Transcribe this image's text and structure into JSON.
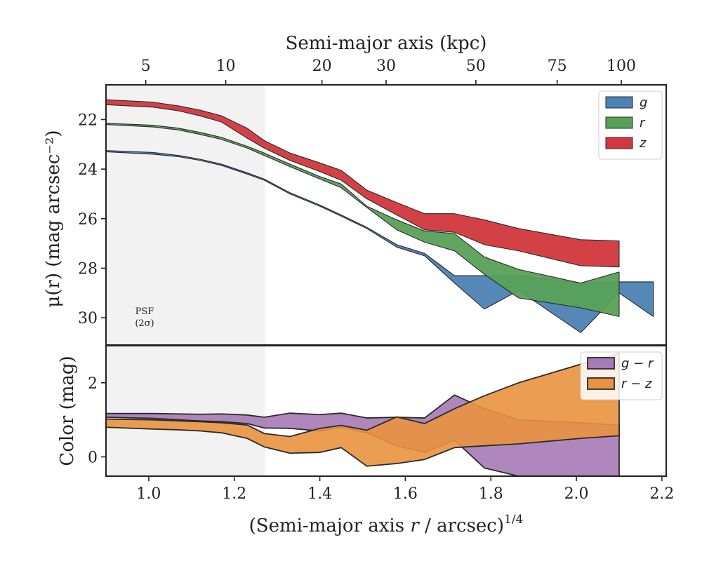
{
  "chart_data": [
    {
      "type": "area",
      "panel": "surface-brightness",
      "xlabel_top": "Semi-major axis (kpc)",
      "ylabel": "μ(r) (mag arcsec⁻²)",
      "xlim": [
        0.9,
        2.21
      ],
      "ylim": [
        31.1,
        20.6
      ],
      "y_inverted": true,
      "yticks": [
        22,
        24,
        26,
        28,
        30
      ],
      "top_ticks_kpc": [
        {
          "label": "5",
          "x": 0.993
        },
        {
          "label": "10",
          "x": 1.18
        },
        {
          "label": "20",
          "x": 1.405
        },
        {
          "label": "30",
          "x": 1.555
        },
        {
          "label": "50",
          "x": 1.765
        },
        {
          "label": "75",
          "x": 1.955
        },
        {
          "label": "100",
          "x": 2.105
        }
      ],
      "psf_shade_x": [
        0.9,
        1.272
      ],
      "psf_label": [
        "PSF",
        "(2σ)"
      ],
      "legend_position": "upper right",
      "series": [
        {
          "name": "g",
          "color": "#4c81b3",
          "upper": [
            [
              0.9,
              23.25
            ],
            [
              1.01,
              23.33
            ],
            [
              1.07,
              23.45
            ],
            [
              1.12,
              23.6
            ],
            [
              1.17,
              23.8
            ],
            [
              1.23,
              24.15
            ],
            [
              1.27,
              24.4
            ],
            [
              1.33,
              24.95
            ],
            [
              1.4,
              25.45
            ],
            [
              1.45,
              25.85
            ],
            [
              1.51,
              26.35
            ],
            [
              1.58,
              27.05
            ],
            [
              1.645,
              27.4
            ],
            [
              1.715,
              28.3
            ],
            [
              1.785,
              28.3
            ],
            [
              1.865,
              28.3
            ],
            [
              2.01,
              28.6
            ],
            [
              2.1,
              28.55
            ],
            [
              2.18,
              28.55
            ]
          ],
          "lower": [
            [
              0.9,
              23.3
            ],
            [
              1.01,
              23.4
            ],
            [
              1.07,
              23.5
            ],
            [
              1.12,
              23.65
            ],
            [
              1.17,
              23.85
            ],
            [
              1.23,
              24.2
            ],
            [
              1.27,
              24.45
            ],
            [
              1.33,
              25.0
            ],
            [
              1.4,
              25.5
            ],
            [
              1.45,
              25.9
            ],
            [
              1.51,
              26.4
            ],
            [
              1.58,
              27.15
            ],
            [
              1.645,
              27.5
            ],
            [
              1.715,
              28.6
            ],
            [
              1.785,
              29.65
            ],
            [
              1.865,
              28.9
            ],
            [
              2.01,
              30.6
            ],
            [
              2.1,
              29.0
            ],
            [
              2.18,
              29.95
            ]
          ]
        },
        {
          "name": "r",
          "color": "#57a157",
          "upper": [
            [
              0.9,
              22.15
            ],
            [
              1.01,
              22.23
            ],
            [
              1.07,
              22.35
            ],
            [
              1.12,
              22.52
            ],
            [
              1.17,
              22.72
            ],
            [
              1.23,
              23.08
            ],
            [
              1.27,
              23.35
            ],
            [
              1.33,
              23.8
            ],
            [
              1.4,
              24.3
            ],
            [
              1.45,
              24.6
            ],
            [
              1.51,
              25.5
            ],
            [
              1.58,
              26.05
            ],
            [
              1.645,
              26.5
            ],
            [
              1.715,
              26.6
            ],
            [
              1.785,
              27.55
            ],
            [
              1.865,
              28.05
            ],
            [
              2.01,
              28.6
            ],
            [
              2.1,
              28.15
            ]
          ],
          "lower": [
            [
              0.9,
              22.2
            ],
            [
              1.01,
              22.3
            ],
            [
              1.07,
              22.42
            ],
            [
              1.12,
              22.6
            ],
            [
              1.17,
              22.8
            ],
            [
              1.23,
              23.15
            ],
            [
              1.27,
              23.45
            ],
            [
              1.33,
              23.9
            ],
            [
              1.4,
              24.4
            ],
            [
              1.45,
              24.75
            ],
            [
              1.51,
              25.55
            ],
            [
              1.58,
              26.45
            ],
            [
              1.645,
              26.95
            ],
            [
              1.715,
              27.3
            ],
            [
              1.785,
              28.25
            ],
            [
              1.865,
              29.2
            ],
            [
              2.01,
              29.6
            ],
            [
              2.1,
              29.95
            ]
          ]
        },
        {
          "name": "z",
          "color": "#d1373d",
          "upper": [
            [
              0.9,
              21.2
            ],
            [
              1.01,
              21.3
            ],
            [
              1.07,
              21.45
            ],
            [
              1.12,
              21.62
            ],
            [
              1.17,
              21.85
            ],
            [
              1.23,
              22.35
            ],
            [
              1.27,
              22.85
            ],
            [
              1.33,
              23.35
            ],
            [
              1.4,
              23.75
            ],
            [
              1.45,
              24.05
            ],
            [
              1.51,
              24.85
            ],
            [
              1.58,
              25.35
            ],
            [
              1.645,
              25.8
            ],
            [
              1.715,
              25.8
            ],
            [
              1.785,
              26.05
            ],
            [
              1.865,
              26.4
            ],
            [
              2.01,
              26.85
            ],
            [
              2.1,
              26.9
            ]
          ],
          "lower": [
            [
              0.9,
              21.4
            ],
            [
              1.01,
              21.5
            ],
            [
              1.07,
              21.65
            ],
            [
              1.12,
              21.85
            ],
            [
              1.17,
              22.1
            ],
            [
              1.23,
              22.75
            ],
            [
              1.27,
              23.15
            ],
            [
              1.33,
              23.65
            ],
            [
              1.4,
              24.1
            ],
            [
              1.45,
              24.45
            ],
            [
              1.51,
              25.2
            ],
            [
              1.58,
              25.85
            ],
            [
              1.645,
              26.45
            ],
            [
              1.715,
              26.55
            ],
            [
              1.785,
              27.05
            ],
            [
              1.865,
              27.3
            ],
            [
              2.01,
              27.9
            ],
            [
              2.1,
              27.95
            ]
          ]
        }
      ]
    },
    {
      "type": "area",
      "panel": "color",
      "xlabel": "(Semi-major axis r / arcsec)^1/4",
      "xlabel_parts": [
        "(Semi-major axis ",
        "r",
        " / arcsec)",
        "1/4"
      ],
      "ylabel": "Color (mag)",
      "xlim": [
        0.9,
        2.21
      ],
      "ylim": [
        -0.52,
        3.0
      ],
      "xticks": [
        1.0,
        1.2,
        1.4,
        1.6,
        1.8,
        2.0,
        2.2
      ],
      "xtick_labels": [
        "1.0",
        "1.2",
        "1.4",
        "1.6",
        "1.8",
        "2.0",
        "2.2"
      ],
      "yticks": [
        0,
        2
      ],
      "psf_shade_x": [
        0.9,
        1.272
      ],
      "legend_position": "upper right",
      "series": [
        {
          "name": "g − r",
          "color": "#a67ab6",
          "upper": [
            [
              0.9,
              1.17
            ],
            [
              1.01,
              1.17
            ],
            [
              1.07,
              1.16
            ],
            [
              1.12,
              1.15
            ],
            [
              1.17,
              1.16
            ],
            [
              1.23,
              1.13
            ],
            [
              1.27,
              1.07
            ],
            [
              1.33,
              1.18
            ],
            [
              1.4,
              1.14
            ],
            [
              1.45,
              1.18
            ],
            [
              1.51,
              1.05
            ],
            [
              1.58,
              1.07
            ],
            [
              1.645,
              1.05
            ],
            [
              1.715,
              1.67
            ],
            [
              1.785,
              1.3
            ],
            [
              1.865,
              1.0
            ],
            [
              2.01,
              0.92
            ],
            [
              2.1,
              0.85
            ]
          ],
          "lower": [
            [
              0.9,
              1.07
            ],
            [
              1.01,
              1.04
            ],
            [
              1.07,
              1.0
            ],
            [
              1.12,
              0.97
            ],
            [
              1.17,
              0.95
            ],
            [
              1.23,
              0.9
            ],
            [
              1.27,
              0.78
            ],
            [
              1.33,
              0.77
            ],
            [
              1.4,
              0.7
            ],
            [
              1.45,
              0.8
            ],
            [
              1.51,
              0.65
            ],
            [
              1.58,
              0.3
            ],
            [
              1.645,
              0.12
            ],
            [
              1.715,
              0.45
            ],
            [
              1.785,
              -0.3
            ],
            [
              1.865,
              -0.52
            ],
            [
              2.01,
              -0.52
            ],
            [
              2.1,
              -0.52
            ]
          ]
        },
        {
          "name": "r − z",
          "color": "#e9923f",
          "upper": [
            [
              0.9,
              1.02
            ],
            [
              1.01,
              1.0
            ],
            [
              1.07,
              0.97
            ],
            [
              1.12,
              0.95
            ],
            [
              1.17,
              0.92
            ],
            [
              1.23,
              0.86
            ],
            [
              1.27,
              0.63
            ],
            [
              1.33,
              0.55
            ],
            [
              1.4,
              0.77
            ],
            [
              1.45,
              0.85
            ],
            [
              1.51,
              0.72
            ],
            [
              1.58,
              1.08
            ],
            [
              1.645,
              0.9
            ],
            [
              1.715,
              1.3
            ],
            [
              1.785,
              1.65
            ],
            [
              1.865,
              2.0
            ],
            [
              2.01,
              2.5
            ],
            [
              2.1,
              2.8
            ]
          ],
          "lower": [
            [
              0.9,
              0.8
            ],
            [
              1.01,
              0.75
            ],
            [
              1.07,
              0.73
            ],
            [
              1.12,
              0.7
            ],
            [
              1.17,
              0.65
            ],
            [
              1.23,
              0.5
            ],
            [
              1.27,
              0.27
            ],
            [
              1.33,
              0.1
            ],
            [
              1.4,
              0.12
            ],
            [
              1.45,
              0.25
            ],
            [
              1.51,
              -0.25
            ],
            [
              1.58,
              -0.18
            ],
            [
              1.645,
              -0.07
            ],
            [
              1.715,
              0.25
            ],
            [
              1.785,
              0.3
            ],
            [
              1.865,
              0.35
            ],
            [
              2.01,
              0.5
            ],
            [
              2.1,
              0.57
            ]
          ]
        }
      ]
    }
  ]
}
